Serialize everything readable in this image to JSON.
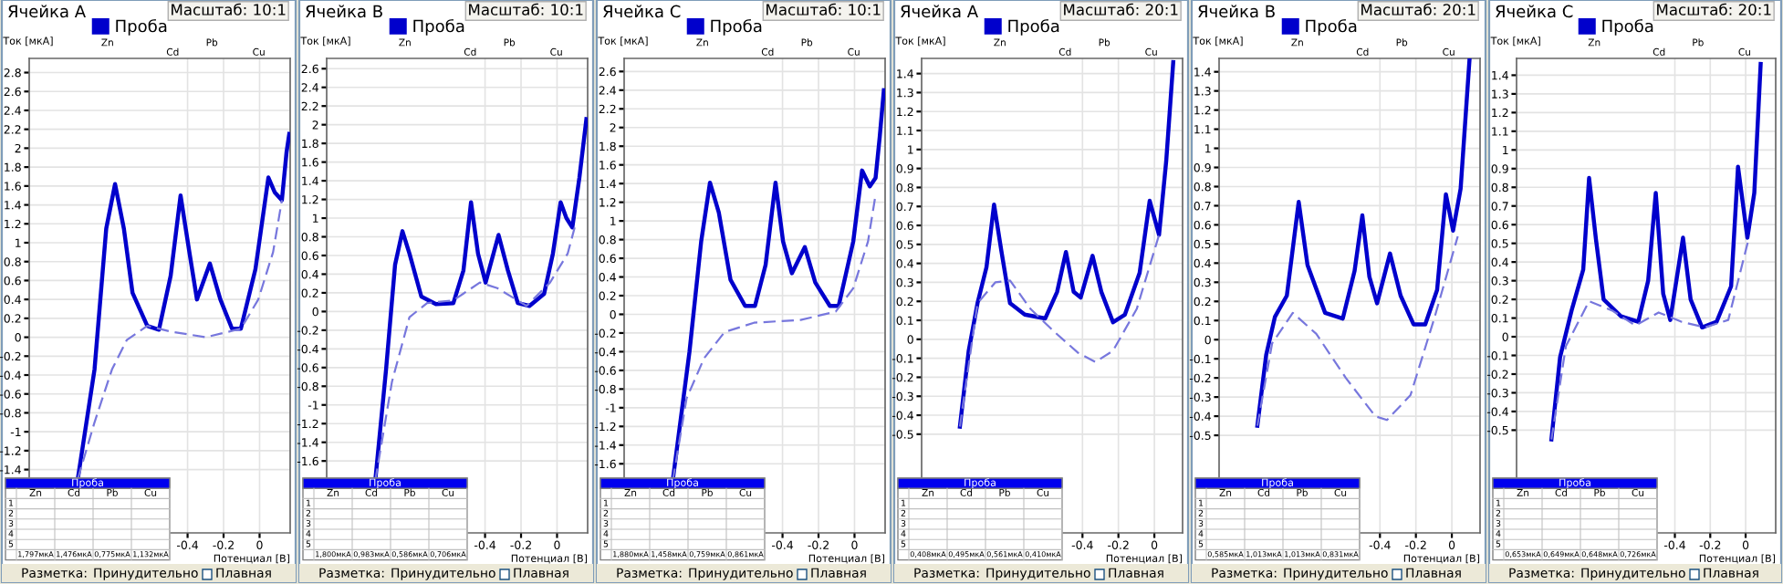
{
  "chart_data": [
    {
      "type": "line",
      "title": "Ячейка A",
      "xlabel": "Потенциал [В]",
      "ylabel": "Ток [мкА]",
      "xlim": [
        -1.28,
        0.17
      ],
      "ylim": [
        -2.07,
        2.95
      ],
      "xticks": [
        -0.4,
        -0.2,
        0
      ],
      "yticks": [
        2.8,
        2.6,
        2.4,
        2.2,
        2,
        1.8,
        1.6,
        1.4,
        1.2,
        1,
        0.8,
        0.6,
        0.4,
        0.2,
        0,
        -0.2,
        -0.4,
        -0.6,
        -0.8,
        -1,
        -1.2,
        -1.4
      ],
      "grid": true,
      "legend": "top",
      "series": [
        {
          "name": "Проба",
          "color": "#0000cc",
          "line_style": "solid",
          "x": [
            -1.01,
            -0.917,
            -0.852,
            -0.803,
            -0.754,
            -0.706,
            -0.624,
            -0.559,
            -0.494,
            -0.439,
            -0.39,
            -0.348,
            -0.276,
            -0.218,
            -0.153,
            -0.104,
            -0.023,
            0.049,
            0.085,
            0.124,
            0.15,
            0.165
          ],
          "values": [
            -1.5,
            -0.34,
            1.15,
            1.62,
            1.15,
            0.47,
            0.12,
            0.08,
            0.65,
            1.5,
            0.9,
            0.4,
            0.78,
            0.4,
            0.09,
            0.09,
            0.72,
            1.69,
            1.53,
            1.45,
            1.96,
            2.15
          ]
        },
        {
          "color": "#7777dd",
          "line_style": "dashed",
          "x": [
            -1.01,
            -0.917,
            -0.82,
            -0.738,
            -0.624,
            -0.494,
            -0.299,
            -0.104,
            -0.007,
            0.075,
            0.124
          ],
          "values": [
            -1.5,
            -0.9,
            -0.34,
            -0.03,
            0.12,
            0.06,
            0.0,
            0.09,
            0.4,
            0.9,
            1.45
          ]
        }
      ],
      "annotations": [
        "Масштаб: 10:1",
        "Проба",
        "Zn",
        "Cd",
        "Pb",
        "Cu",
        "1,797мкА",
        "1,476мкА",
        "0,775мкА",
        "1,132мкА",
        "Разметка:",
        "Принудительно",
        "Плавная",
        "1",
        "2",
        "3",
        "4",
        "5",
        "Zn",
        "Cd",
        "Pb",
        "Cu"
      ]
    },
    {
      "type": "line",
      "title": "Ячейка B",
      "xlabel": "Потенциал [В]",
      "ylabel": "Ток [мкА]",
      "xlim": [
        -1.28,
        0.17
      ],
      "ylim": [
        -2.37,
        2.71
      ],
      "xticks": [
        -0.4,
        -0.2,
        0
      ],
      "yticks": [
        2.6,
        2.4,
        2.2,
        2,
        1.8,
        1.6,
        1.4,
        1.2,
        1,
        0.8,
        0.6,
        0.4,
        0.2,
        0,
        -0.2,
        -0.4,
        -0.6,
        -0.8,
        -1,
        -1.2,
        -1.4,
        -1.6
      ],
      "grid": true,
      "legend": "top",
      "series": [
        {
          "name": "Проба",
          "color": "#0000cc",
          "line_style": "solid",
          "x": [
            -1.01,
            -0.95,
            -0.9,
            -0.859,
            -0.82,
            -0.754,
            -0.673,
            -0.576,
            -0.52,
            -0.478,
            -0.439,
            -0.397,
            -0.325,
            -0.273,
            -0.218,
            -0.153,
            -0.072,
            -0.023,
            0.02,
            0.052,
            0.085,
            0.124,
            0.163
          ],
          "values": [
            -1.81,
            -0.62,
            0.5,
            0.86,
            0.62,
            0.16,
            0.08,
            0.09,
            0.44,
            1.17,
            0.62,
            0.31,
            0.82,
            0.44,
            0.09,
            0.06,
            0.19,
            0.62,
            1.17,
            1.0,
            0.9,
            1.43,
            2.06
          ]
        },
        {
          "color": "#7777dd",
          "line_style": "dashed",
          "x": [
            -1.01,
            -0.917,
            -0.82,
            -0.722,
            -0.576,
            -0.429,
            -0.332,
            -0.169,
            -0.039,
            0.059,
            0.098
          ],
          "values": [
            -1.81,
            -0.75,
            -0.06,
            0.09,
            0.12,
            0.31,
            0.25,
            0.06,
            0.31,
            0.62,
            0.9
          ]
        }
      ],
      "annotations": [
        "Масштаб: 10:1",
        "Проба",
        "Zn",
        "Cd",
        "Pb",
        "Cu",
        "1,800мкА",
        "0,983мкА",
        "0,586мкА",
        "0,706мкА",
        "Разметка:",
        "Принудительно",
        "Плавная",
        "1",
        "2",
        "3",
        "4",
        "5",
        "Zn",
        "Cd",
        "Pb",
        "Cu"
      ]
    },
    {
      "type": "line",
      "title": "Ячейка C",
      "xlabel": "Потенциал [В]",
      "ylabel": "Ток [мкА]",
      "xlim": [
        -1.28,
        0.17
      ],
      "ylim": [
        -2.34,
        2.74
      ],
      "xticks": [
        -0.4,
        -0.2,
        0
      ],
      "yticks": [
        2.6,
        2.4,
        2.2,
        2,
        1.8,
        1.6,
        1.4,
        1.2,
        1,
        0.8,
        0.6,
        0.4,
        0.2,
        0,
        -0.2,
        -0.4,
        -0.6,
        -0.8,
        -1,
        -1.2,
        -1.4,
        -1.6
      ],
      "grid": true,
      "legend": "top",
      "series": [
        {
          "name": "Проба",
          "color": "#0000cc",
          "line_style": "solid",
          "x": [
            -1.01,
            -0.917,
            -0.852,
            -0.803,
            -0.754,
            -0.689,
            -0.608,
            -0.553,
            -0.494,
            -0.439,
            -0.397,
            -0.348,
            -0.276,
            -0.218,
            -0.137,
            -0.088,
            -0.007,
            0.042,
            0.085,
            0.117,
            0.14,
            0.163
          ],
          "values": [
            -1.78,
            -0.4,
            0.78,
            1.41,
            1.09,
            0.37,
            0.09,
            0.09,
            0.53,
            1.41,
            0.78,
            0.44,
            0.72,
            0.34,
            0.09,
            0.09,
            0.78,
            1.54,
            1.37,
            1.46,
            1.9,
            2.4
          ]
        },
        {
          "color": "#7777dd",
          "line_style": "dashed",
          "x": [
            -1.01,
            -0.933,
            -0.836,
            -0.722,
            -0.559,
            -0.299,
            -0.104,
            -0.007,
            0.075,
            0.117
          ],
          "values": [
            -1.78,
            -0.9,
            -0.47,
            -0.19,
            -0.09,
            -0.06,
            0.03,
            0.28,
            0.78,
            1.28
          ]
        }
      ],
      "annotations": [
        "Масштаб: 10:1",
        "Проба",
        "Zn",
        "Cd",
        "Pb",
        "Cu",
        "1,880мкА",
        "1,458мкА",
        "0,759мкА",
        "0,861мкА",
        "Разметка:",
        "Принудительно",
        "Плавная",
        "1",
        "2",
        "3",
        "4",
        "5",
        "Zn",
        "Cd",
        "Pb",
        "Cu"
      ]
    },
    {
      "type": "line",
      "title": "Ячейка A",
      "xlabel": "Потенциал [В]",
      "ylabel": "Ток [мкА]",
      "xlim": [
        -1.295,
        0.157
      ],
      "ylim": [
        -1.02,
        1.48
      ],
      "xticks": [
        -0.4,
        -0.2,
        0
      ],
      "yticks": [
        1.4,
        1.3,
        1.2,
        1.1,
        1,
        0.9,
        0.8,
        0.7,
        0.6,
        0.5,
        0.4,
        0.3,
        0.2,
        0.1,
        0,
        -0.1,
        -0.2,
        -0.3,
        -0.4,
        -0.5
      ],
      "grid": true,
      "legend": "top",
      "series": [
        {
          "name": "Проба",
          "color": "#0000cc",
          "line_style": "solid",
          "x": [
            -1.082,
            -1.033,
            -0.984,
            -0.934,
            -0.892,
            -0.852,
            -0.803,
            -0.721,
            -0.607,
            -0.541,
            -0.492,
            -0.449,
            -0.41,
            -0.344,
            -0.295,
            -0.23,
            -0.164,
            -0.082,
            -0.026,
            0.026,
            0.066,
            0.105
          ],
          "values": [
            -0.46,
            -0.06,
            0.19,
            0.38,
            0.71,
            0.47,
            0.19,
            0.13,
            0.11,
            0.25,
            0.46,
            0.25,
            0.22,
            0.44,
            0.25,
            0.09,
            0.13,
            0.35,
            0.73,
            0.55,
            0.94,
            1.46
          ]
        },
        {
          "color": "#7777dd",
          "line_style": "dashed",
          "x": [
            -1.082,
            -0.984,
            -0.885,
            -0.803,
            -0.689,
            -0.557,
            -0.426,
            -0.328,
            -0.23,
            -0.098,
            0.026
          ],
          "values": [
            -0.46,
            0.19,
            0.3,
            0.31,
            0.16,
            0.04,
            -0.07,
            -0.12,
            -0.06,
            0.16,
            0.55
          ]
        }
      ],
      "annotations": [
        "Масштаб: 20:1",
        "Проба",
        "Zn",
        "Cd",
        "Pb",
        "Cu",
        "0,408мкА",
        "0,495мкА",
        "0,561мкА",
        "0,410мкА",
        "Разметка:",
        "Принудительно",
        "Плавная",
        "1",
        "2",
        "3",
        "4",
        "5",
        "Zn",
        "Cd",
        "Pb",
        "Cu"
      ]
    },
    {
      "type": "line",
      "title": "Ячейка B",
      "xlabel": "Потенциал [В]",
      "ylabel": "Ток [мкА]",
      "xlim": [
        -1.295,
        0.157
      ],
      "ylim": [
        -1.01,
        1.47
      ],
      "xticks": [
        -0.4,
        -0.2,
        0
      ],
      "yticks": [
        1.4,
        1.3,
        1.2,
        1.1,
        1,
        0.9,
        0.8,
        0.7,
        0.6,
        0.5,
        0.4,
        0.3,
        0.2,
        0.1,
        0,
        -0.1,
        -0.2,
        -0.3,
        -0.4,
        -0.5
      ],
      "grid": true,
      "legend": "top",
      "series": [
        {
          "name": "Проба",
          "color": "#0000cc",
          "line_style": "solid",
          "x": [
            -1.082,
            -1.033,
            -0.984,
            -0.918,
            -0.852,
            -0.803,
            -0.705,
            -0.607,
            -0.541,
            -0.498,
            -0.459,
            -0.416,
            -0.344,
            -0.285,
            -0.213,
            -0.148,
            -0.082,
            -0.033,
            0.007,
            0.049,
            0.098
          ],
          "values": [
            -0.45,
            -0.08,
            0.12,
            0.23,
            0.72,
            0.39,
            0.14,
            0.11,
            0.36,
            0.65,
            0.33,
            0.19,
            0.45,
            0.23,
            0.08,
            0.08,
            0.26,
            0.76,
            0.57,
            0.79,
            1.46
          ]
        },
        {
          "color": "#7777dd",
          "line_style": "dashed",
          "x": [
            -1.082,
            -1.0,
            -0.885,
            -0.754,
            -0.59,
            -0.426,
            -0.361,
            -0.23,
            -0.098,
            0.033
          ],
          "values": [
            -0.45,
            -0.02,
            0.14,
            0.03,
            -0.2,
            -0.4,
            -0.42,
            -0.29,
            0.11,
            0.54
          ]
        }
      ],
      "annotations": [
        "Масштаб: 20:1",
        "Проба",
        "Zn",
        "Cd",
        "Pb",
        "Cu",
        "0,585мкА",
        "1,013мкА",
        "1,013мкА",
        "0,831мкА",
        "Разметка:",
        "Принудительно",
        "Плавная",
        "1",
        "2",
        "3",
        "4",
        "5",
        "Zn",
        "Cd",
        "Pb",
        "Cu"
      ]
    },
    {
      "type": "line",
      "title": "Ячейка C",
      "xlabel": "Потенциал [В]",
      "ylabel": "Ток [мкА]",
      "xlim": [
        -1.295,
        0.17
      ],
      "ylim": [
        -1.05,
        1.49
      ],
      "xticks": [
        -0.4,
        -0.2,
        0
      ],
      "yticks": [
        1.4,
        1.3,
        1.2,
        1.1,
        1,
        0.9,
        0.8,
        0.7,
        0.6,
        0.5,
        0.4,
        0.3,
        0.2,
        0.1,
        0,
        -0.1,
        -0.2,
        -0.3,
        -0.4,
        -0.5
      ],
      "grid": true,
      "legend": "top",
      "series": [
        {
          "name": "Проба",
          "color": "#0000cc",
          "line_style": "solid",
          "x": [
            -1.098,
            -1.049,
            -0.984,
            -0.918,
            -0.885,
            -0.846,
            -0.803,
            -0.705,
            -0.607,
            -0.551,
            -0.508,
            -0.466,
            -0.426,
            -0.354,
            -0.311,
            -0.246,
            -0.164,
            -0.082,
            -0.043,
            0.01,
            0.049,
            0.085
          ],
          "values": [
            -0.55,
            -0.11,
            0.14,
            0.36,
            0.85,
            0.52,
            0.2,
            0.11,
            0.08,
            0.3,
            0.77,
            0.23,
            0.09,
            0.53,
            0.2,
            0.05,
            0.08,
            0.27,
            0.91,
            0.53,
            0.77,
            1.46
          ]
        },
        {
          "color": "#7777dd",
          "line_style": "dashed",
          "x": [
            -1.098,
            -1.016,
            -0.885,
            -0.754,
            -0.623,
            -0.492,
            -0.361,
            -0.23,
            -0.098,
            0.016
          ],
          "values": [
            -0.55,
            -0.05,
            0.19,
            0.14,
            0.06,
            0.13,
            0.08,
            0.05,
            0.09,
            0.52
          ]
        }
      ],
      "annotations": [
        "Масштаб: 20:1",
        "Проба",
        "Zn",
        "Cd",
        "Pb",
        "Cu",
        "0,653мкА",
        "0,649мкА",
        "0,648мкА",
        "0,726мкА",
        "Разметка:",
        "Принудительно",
        "Плавная",
        "1",
        "2",
        "3",
        "4",
        "5",
        "Zn",
        "Cd",
        "Pb",
        "Cu"
      ]
    }
  ]
}
